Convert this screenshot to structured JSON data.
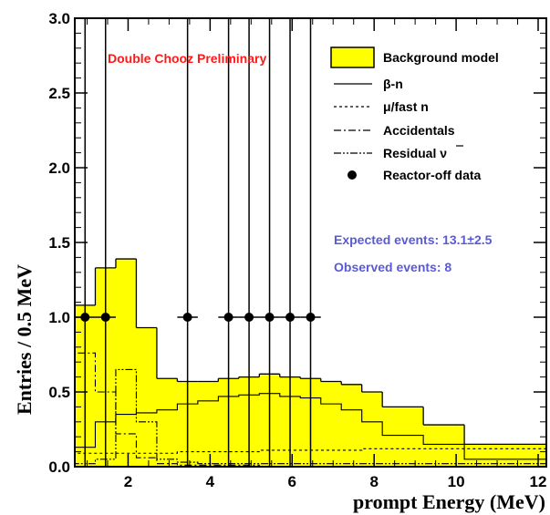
{
  "chart_data": {
    "type": "histogram",
    "xlabel": "prompt Energy (MeV)",
    "ylabel": "Entries / 0.5 MeV",
    "xlim": [
      0.7,
      12.2
    ],
    "ylim": [
      0,
      3.0
    ],
    "x_ticks": [
      2,
      4,
      6,
      8,
      10,
      12
    ],
    "y_ticks": [
      0.0,
      0.5,
      1.0,
      1.5,
      2.0,
      2.5,
      3.0
    ],
    "x_tick_labels": [
      "2",
      "4",
      "6",
      "8",
      "10",
      "12"
    ],
    "y_tick_labels": [
      "0.0",
      "0.5",
      "1.0",
      "1.5",
      "2.0",
      "2.5",
      "3.0"
    ],
    "banner": "Double Chooz Preliminary",
    "expected_text": "Expected events: 13.1±2.5",
    "observed_text": "Observed events: 8",
    "legend": {
      "background_model": "Background model",
      "beta_n": "β-n",
      "mu_fast_n": "μ/fast n",
      "accidentals": "Accidentals",
      "residual_nu": "Residual ν",
      "reactor_off": "Reactor-off data"
    },
    "bin_edges": [
      0.7,
      1.2,
      1.7,
      2.2,
      2.7,
      3.2,
      3.7,
      4.2,
      4.7,
      5.2,
      5.7,
      6.2,
      6.7,
      7.2,
      7.7,
      8.2,
      9.2,
      10.2,
      12.2
    ],
    "series": [
      {
        "key": "background_model",
        "values": [
          1.08,
          1.33,
          1.39,
          0.93,
          0.59,
          0.57,
          0.57,
          0.59,
          0.6,
          0.62,
          0.6,
          0.59,
          0.57,
          0.55,
          0.5,
          0.4,
          0.28,
          0.15
        ]
      },
      {
        "key": "beta_n",
        "values": [
          0.13,
          0.3,
          0.35,
          0.36,
          0.38,
          0.42,
          0.44,
          0.47,
          0.48,
          0.49,
          0.47,
          0.46,
          0.42,
          0.38,
          0.3,
          0.21,
          0.15,
          0.05
        ]
      },
      {
        "key": "mu_fast_n",
        "values": [
          0.09,
          0.09,
          0.09,
          0.09,
          0.09,
          0.1,
          0.1,
          0.1,
          0.1,
          0.11,
          0.11,
          0.11,
          0.11,
          0.11,
          0.12,
          0.12,
          0.12,
          0.12
        ]
      },
      {
        "key": "accidentals",
        "values": [
          0.76,
          0.5,
          0.22,
          0.06,
          0.02,
          0.01,
          0.01,
          0.01,
          0.01,
          0.0,
          0.0,
          0.0,
          0.0,
          0.0,
          0.0,
          0.0,
          0.0,
          0.0
        ]
      },
      {
        "key": "residual_nu",
        "values": [
          0.02,
          0.05,
          0.65,
          0.3,
          0.05,
          0.03,
          0.02,
          0.02,
          0.02,
          0.02,
          0.02,
          0.02,
          0.02,
          0.02,
          0.02,
          0.02,
          0.02,
          0.02
        ]
      }
    ],
    "data_points": [
      {
        "x": 0.95,
        "y": 1,
        "y_up": 3.0,
        "y_low": 0,
        "x_err": 0.25
      },
      {
        "x": 1.45,
        "y": 1,
        "y_up": 3.0,
        "y_low": 0,
        "x_err": 0.25
      },
      {
        "x": 3.45,
        "y": 1,
        "y_up": 3.0,
        "y_low": 0,
        "x_err": 0.25
      },
      {
        "x": 4.45,
        "y": 1,
        "y_up": 3.0,
        "y_low": 0,
        "x_err": 0.25
      },
      {
        "x": 4.95,
        "y": 1,
        "y_up": 3.0,
        "y_low": 0,
        "x_err": 0.25
      },
      {
        "x": 5.45,
        "y": 1,
        "y_up": 3.0,
        "y_low": 0,
        "x_err": 0.25
      },
      {
        "x": 5.95,
        "y": 1,
        "y_up": 3.0,
        "y_low": 0,
        "x_err": 0.25
      },
      {
        "x": 6.45,
        "y": 1,
        "y_up": 3.0,
        "y_low": 0,
        "x_err": 0.25
      }
    ],
    "colors": {
      "band": "#ffff00",
      "line": "#000000",
      "banner": "#ff1a1a",
      "info": "#5a5ad6"
    }
  }
}
